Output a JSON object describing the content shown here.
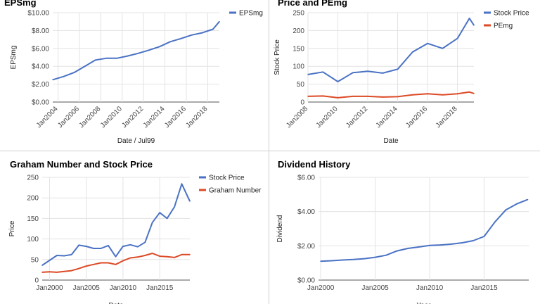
{
  "colors": {
    "blue": "#4a72c4",
    "red": "#dc4a26",
    "grid": "#e3e3e3",
    "axis": "#444444"
  },
  "chart_data": [
    {
      "type": "line",
      "title": "EPSmg",
      "xlabel": "Date / Jul99",
      "ylabel": "EPSmg",
      "ylim": [
        0,
        10
      ],
      "xlim": [
        2003.5,
        2019.1
      ],
      "yticks": [
        "$0.00",
        "$2.00",
        "$4.00",
        "$6.00",
        "$8.00",
        "$10.00"
      ],
      "ytick_values": [
        0,
        2,
        4,
        6,
        8,
        10
      ],
      "xticks": [
        "Jan2004",
        "Jan2006",
        "Jan2008",
        "Jan2010",
        "Jan2012",
        "Jan2014",
        "Jan2016",
        "Jan2018"
      ],
      "xtick_values": [
        2004,
        2006,
        2008,
        2010,
        2012,
        2014,
        2016,
        2018
      ],
      "x_rotated": true,
      "grid": true,
      "legend": "right",
      "series": [
        {
          "name": "EPSmg",
          "color": "#4a72c4",
          "x": [
            2003.5,
            2004.5,
            2005.5,
            2006.5,
            2007.5,
            2008.5,
            2009.5,
            2010.5,
            2011.5,
            2012.5,
            2013.5,
            2014.5,
            2015.5,
            2016.5,
            2017.5,
            2018.5,
            2019.1
          ],
          "values": [
            2.5,
            2.85,
            3.3,
            4.0,
            4.7,
            4.9,
            4.9,
            5.15,
            5.45,
            5.8,
            6.2,
            6.75,
            7.1,
            7.5,
            7.75,
            8.15,
            9.0
          ]
        }
      ]
    },
    {
      "type": "line",
      "title": "Price and PEmg",
      "xlabel": "Date",
      "ylabel": "Stock Price",
      "ylim": [
        0,
        250
      ],
      "xlim": [
        2008,
        2019.1
      ],
      "yticks": [
        "0",
        "50",
        "100",
        "150",
        "200",
        "250"
      ],
      "ytick_values": [
        0,
        50,
        100,
        150,
        200,
        250
      ],
      "xticks": [
        "Jan2008",
        "Jan2010",
        "Jan2012",
        "Jan2014",
        "Jan2016",
        "Jan2018"
      ],
      "xtick_values": [
        2008,
        2010,
        2012,
        2014,
        2016,
        2018
      ],
      "x_rotated": true,
      "grid": true,
      "legend": "right",
      "series": [
        {
          "name": "Stock Price",
          "color": "#4a72c4",
          "x": [
            2008,
            2009,
            2010,
            2011,
            2012,
            2013,
            2014,
            2015,
            2016,
            2017,
            2018,
            2018.8,
            2019.1
          ],
          "values": [
            77,
            84,
            57,
            82,
            86,
            81,
            92,
            140,
            164,
            150,
            178,
            234,
            215
          ]
        },
        {
          "name": "PEmg",
          "color": "#dc4a26",
          "x": [
            2008,
            2009,
            2010,
            2011,
            2012,
            2013,
            2014,
            2015,
            2016,
            2017,
            2018,
            2018.8,
            2019.1
          ],
          "values": [
            16,
            17,
            12,
            16,
            16,
            14,
            15,
            20,
            23,
            20,
            23,
            28,
            24
          ]
        }
      ]
    },
    {
      "type": "line",
      "title": "Graham Number and Stock Price",
      "xlabel": "Date",
      "ylabel": "Price",
      "ylim": [
        0,
        250
      ],
      "xlim": [
        1999,
        2019.1
      ],
      "yticks": [
        "0",
        "50",
        "100",
        "150",
        "200",
        "250"
      ],
      "ytick_values": [
        0,
        50,
        100,
        150,
        200,
        250
      ],
      "xticks": [
        "Jan2000",
        "Jan2005",
        "Jan2010",
        "Jan2015"
      ],
      "xtick_values": [
        2000,
        2005,
        2010,
        2015
      ],
      "x_rotated": false,
      "grid": true,
      "legend": "right",
      "series": [
        {
          "name": "Stock Price",
          "color": "#4a72c4",
          "x": [
            1999,
            2000,
            2001,
            2002,
            2003,
            2004,
            2005,
            2006,
            2007,
            2008,
            2009,
            2010,
            2011,
            2012,
            2013,
            2014,
            2015,
            2016,
            2017,
            2018,
            2019.1
          ],
          "values": [
            36,
            48,
            60,
            59,
            62,
            85,
            82,
            77,
            77,
            84,
            57,
            82,
            86,
            81,
            92,
            140,
            164,
            150,
            178,
            234,
            192
          ]
        },
        {
          "name": "Graham Number",
          "color": "#dc4a26",
          "x": [
            1999,
            2000,
            2001,
            2002,
            2003,
            2004,
            2005,
            2006,
            2007,
            2008,
            2009,
            2010,
            2011,
            2012,
            2013,
            2014,
            2015,
            2016,
            2017,
            2018,
            2019.1
          ],
          "values": [
            19,
            20,
            19,
            21,
            23,
            28,
            34,
            38,
            42,
            42,
            38,
            47,
            54,
            56,
            60,
            65,
            58,
            57,
            55,
            62,
            62
          ]
        }
      ]
    },
    {
      "type": "line",
      "title": "Dividend History",
      "xlabel": "Year",
      "ylabel": "Dividend",
      "ylim": [
        0,
        6
      ],
      "xlim": [
        1999.8,
        2019.1
      ],
      "yticks": [
        "$0.00",
        "$2.00",
        "$4.00",
        "$6.00"
      ],
      "ytick_values": [
        0,
        2,
        4,
        6
      ],
      "xticks": [
        "Jan2000",
        "Jan2005",
        "Jan2010",
        "Jan2015"
      ],
      "xtick_values": [
        2000,
        2005,
        2010,
        2015
      ],
      "x_rotated": false,
      "grid": true,
      "legend": "none",
      "series": [
        {
          "name": "",
          "color": "#4a72c4",
          "x": [
            2000,
            2001,
            2002,
            2003,
            2004,
            2005,
            2006,
            2007,
            2008,
            2009,
            2010,
            2011,
            2012,
            2013,
            2014,
            2015,
            2016,
            2017,
            2018,
            2019
          ],
          "values": [
            1.1,
            1.13,
            1.17,
            1.2,
            1.25,
            1.33,
            1.45,
            1.7,
            1.85,
            1.93,
            2.02,
            2.05,
            2.1,
            2.18,
            2.3,
            2.55,
            3.4,
            4.1,
            4.45,
            4.7
          ]
        }
      ]
    }
  ]
}
